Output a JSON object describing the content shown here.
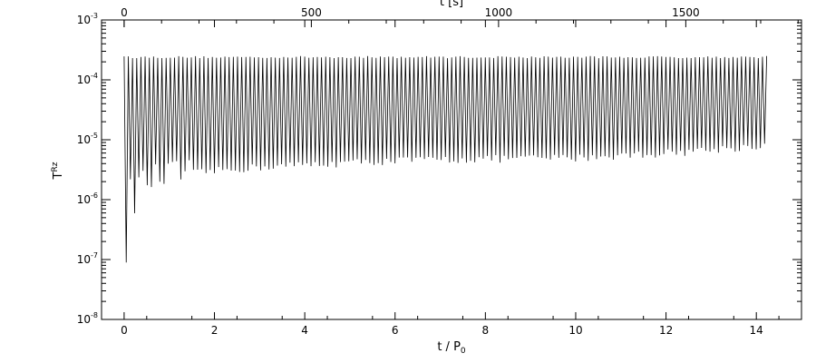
{
  "chart_data": {
    "type": "line",
    "title": "",
    "xlabel_bottom": "t / P",
    "xlabel_bottom_sub": "0",
    "xlabel_top": "t [s]",
    "ylabel": "T",
    "ylabel_sup": "Rz",
    "x_bottom": {
      "min": -0.5,
      "max": 15.0,
      "ticks": [
        0,
        2,
        4,
        6,
        8,
        10,
        12,
        14
      ],
      "tick_labels": [
        "0",
        "2",
        "4",
        "6",
        "8",
        "10",
        "12",
        "14"
      ]
    },
    "x_top": {
      "seconds_per_unit": 120.6,
      "ticks": [
        0,
        500,
        1000,
        1500
      ],
      "tick_labels": [
        "0",
        "500",
        "1000",
        "1500"
      ]
    },
    "y": {
      "scale": "log",
      "min": 1e-08,
      "max": 0.001,
      "decades": [
        -8,
        -7,
        -6,
        -5,
        -4,
        -3
      ],
      "tick_base": "10",
      "tick_exponents": [
        "-8",
        "-7",
        "-6",
        "-5",
        "-4",
        "-3"
      ]
    },
    "series": [
      {
        "x_start": 0.0,
        "x_end": 14.2,
        "period": 0.093,
        "peak_upper": 0.00025,
        "trough_envelope": [
          [
            0.0,
            3e-08
          ],
          [
            0.1,
            1.2e-06
          ],
          [
            0.5,
            2e-06
          ],
          [
            1.0,
            2.5e-06
          ],
          [
            2.0,
            3e-06
          ],
          [
            3.0,
            3.5e-06
          ],
          [
            4.0,
            3.8e-06
          ],
          [
            6.0,
            4.5e-06
          ],
          [
            8.0,
            4.8e-06
          ],
          [
            10.0,
            5e-06
          ],
          [
            12.0,
            6e-06
          ],
          [
            14.2,
            8e-06
          ]
        ]
      }
    ],
    "grid": false,
    "legend": "none"
  }
}
